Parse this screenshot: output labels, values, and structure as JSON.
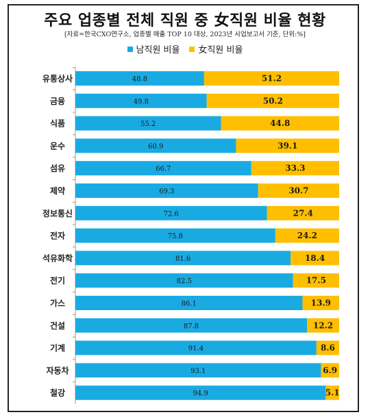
{
  "chart_data": {
    "type": "bar",
    "orientation": "horizontal-stacked-100",
    "title": "주요 업종별 전체 직원 중 女직원 비율 현황",
    "subtitle": "[자료=한국CXO연구소, 업종별 매출 TOP 10 대상, 2023년 사업보고서 기준, 단위:%]",
    "categories": [
      "유통상사",
      "금융",
      "식품",
      "운수",
      "섬유",
      "제약",
      "정보통신",
      "전자",
      "석유화학",
      "전기",
      "가스",
      "건설",
      "기계",
      "자동차",
      "철강"
    ],
    "series": [
      {
        "name": "남직원 비율",
        "color": "#1AAAE2",
        "values": [
          48.8,
          49.8,
          55.2,
          60.9,
          66.7,
          69.3,
          72.6,
          75.8,
          81.6,
          82.5,
          86.1,
          87.8,
          91.4,
          93.1,
          94.9
        ]
      },
      {
        "name": "女직원 비율",
        "color": "#FFBF00",
        "values": [
          51.2,
          50.2,
          44.8,
          39.1,
          33.3,
          30.7,
          27.4,
          24.2,
          18.4,
          17.5,
          13.9,
          12.2,
          8.6,
          6.9,
          5.1
        ]
      }
    ],
    "xlim": [
      0,
      100
    ],
    "legend": "top",
    "grid": false
  }
}
